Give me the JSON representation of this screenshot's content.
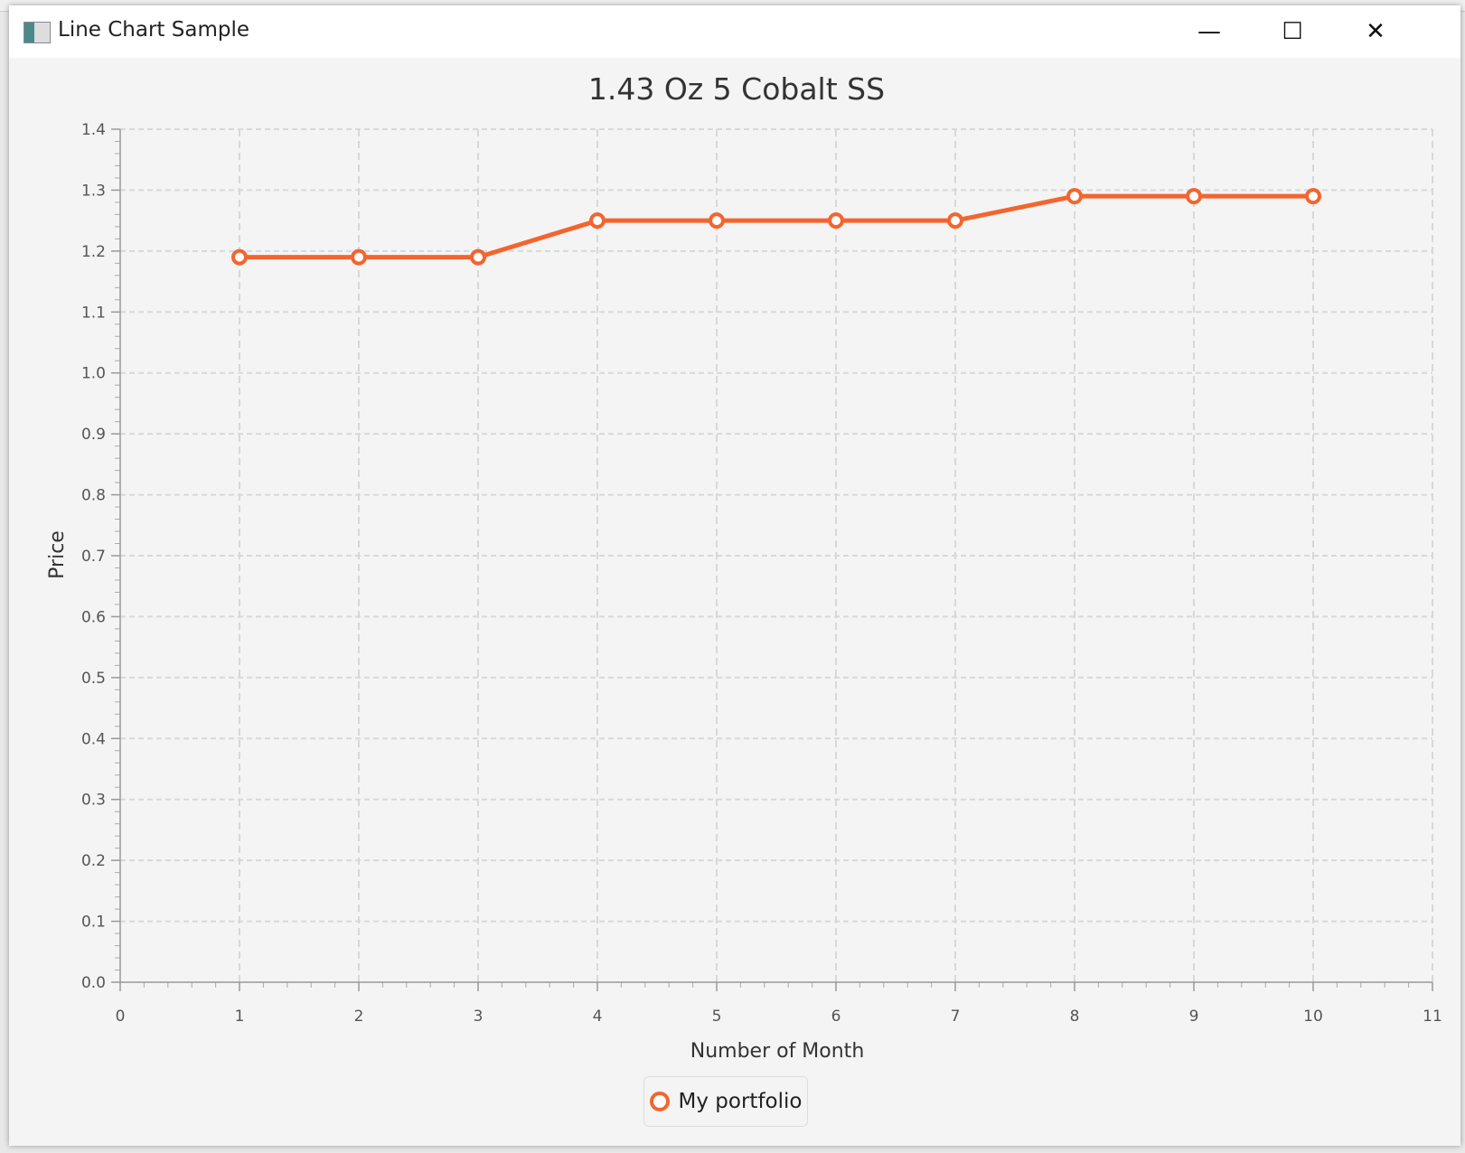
{
  "window": {
    "title": "Line Chart Sample",
    "minimize": "—",
    "maximize": "☐",
    "close": "✕"
  },
  "chart_data": {
    "type": "line",
    "title": "1.43 Oz 5 Cobalt SS",
    "xlabel": "Number of Month",
    "ylabel": "Price",
    "xlim": [
      0,
      11
    ],
    "ylim": [
      0,
      1.4
    ],
    "xticks": [
      "0",
      "1",
      "2",
      "3",
      "4",
      "5",
      "6",
      "7",
      "8",
      "9",
      "10",
      "11"
    ],
    "yticks": [
      "0.0",
      "0.1",
      "0.2",
      "0.3",
      "0.4",
      "0.5",
      "0.6",
      "0.7",
      "0.8",
      "0.9",
      "1.0",
      "1.1",
      "1.2",
      "1.3",
      "1.4"
    ],
    "grid": true,
    "legend_position": "bottom",
    "series": [
      {
        "name": "My portfolio",
        "color": "#f3652f",
        "x": [
          1,
          2,
          3,
          4,
          5,
          6,
          7,
          8,
          9,
          10
        ],
        "y": [
          1.19,
          1.19,
          1.19,
          1.25,
          1.25,
          1.25,
          1.25,
          1.29,
          1.29,
          1.29
        ]
      }
    ]
  }
}
